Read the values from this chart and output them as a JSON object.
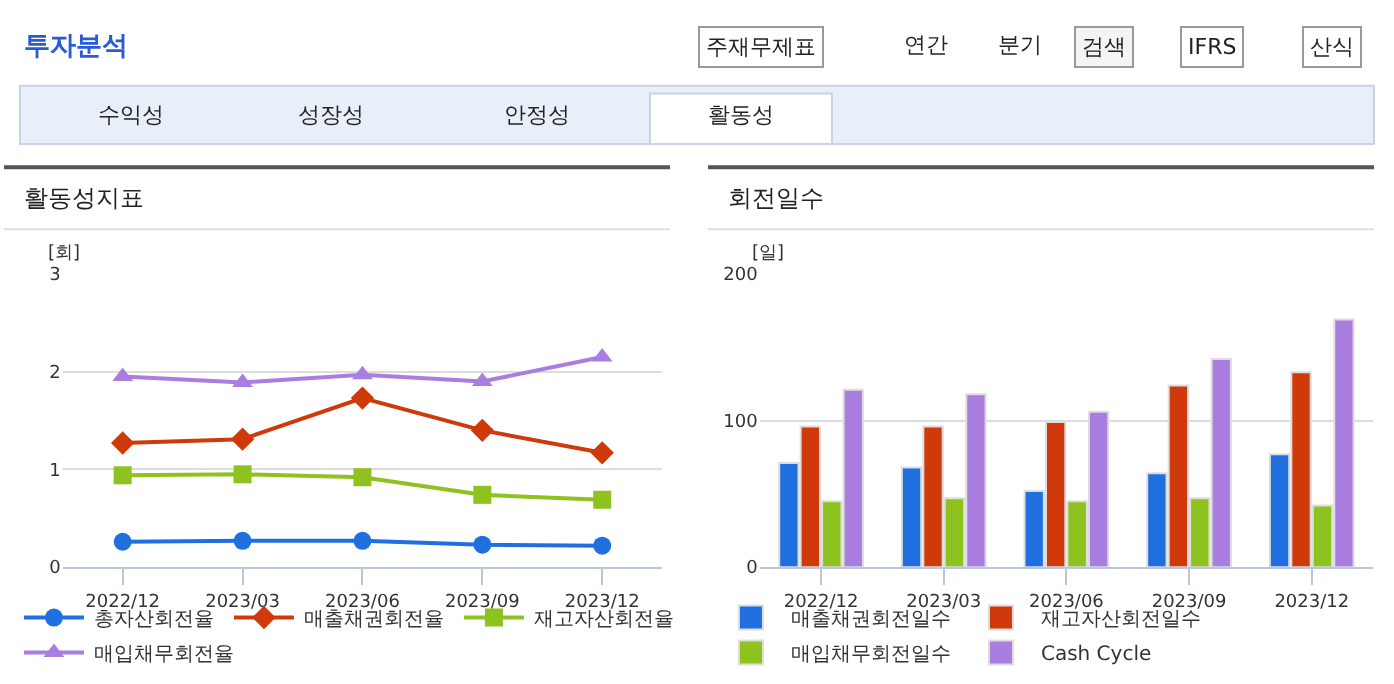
{
  "chart_data": [
    {
      "type": "other",
      "title": "투자분석",
      "annotations": [
        "주재무제표",
        "연간",
        "분기",
        "검색",
        "IFRS",
        "산식",
        "수익성",
        "성장성",
        "안정성",
        "활동성"
      ]
    },
    {
      "type": "line",
      "title": "활동성지표",
      "ylabel": "[회]",
      "categories": [
        "2022/12",
        "2023/03",
        "2023/06",
        "2023/09",
        "2023/12"
      ],
      "ylim": [
        0,
        3
      ],
      "yticks": [
        0,
        1,
        2,
        3
      ],
      "grid": "y",
      "legend": "bottom",
      "series": [
        {
          "name": "총자산회전율",
          "color": "#1f6fe0",
          "marker": "circle",
          "values": [
            0.26,
            0.27,
            0.27,
            0.23,
            0.22
          ]
        },
        {
          "name": "매출채권회전율",
          "color": "#d03a0a",
          "marker": "diamond",
          "values": [
            1.27,
            1.31,
            1.73,
            1.4,
            1.17
          ]
        },
        {
          "name": "재고자산회전율",
          "color": "#8dc21f",
          "marker": "square",
          "values": [
            0.94,
            0.95,
            0.92,
            0.74,
            0.69
          ]
        },
        {
          "name": "매입채무회전율",
          "color": "#a97ee0",
          "marker": "triangle",
          "values": [
            1.95,
            1.89,
            1.97,
            1.9,
            2.15
          ]
        }
      ]
    },
    {
      "type": "bar",
      "title": "회전일수",
      "ylabel": "[일]",
      "categories": [
        "2022/12",
        "2023/03",
        "2023/06",
        "2023/09",
        "2023/12"
      ],
      "ylim": [
        0,
        200
      ],
      "yticks": [
        0,
        100,
        200
      ],
      "grid": "y",
      "legend": "bottom",
      "series": [
        {
          "name": "매출채권회전일수",
          "color": "#1f6fe0",
          "values": [
            71,
            68,
            52,
            64,
            77
          ]
        },
        {
          "name": "재고자산회전일수",
          "color": "#d03a0a",
          "values": [
            96,
            96,
            99,
            124,
            133
          ]
        },
        {
          "name": "매입채무회전일수",
          "color": "#8dc21f",
          "values": [
            45,
            47,
            45,
            47,
            42
          ]
        },
        {
          "name": "Cash Cycle",
          "color": "#a97ee0",
          "values": [
            121,
            118,
            106,
            142,
            169
          ]
        }
      ]
    }
  ]
}
